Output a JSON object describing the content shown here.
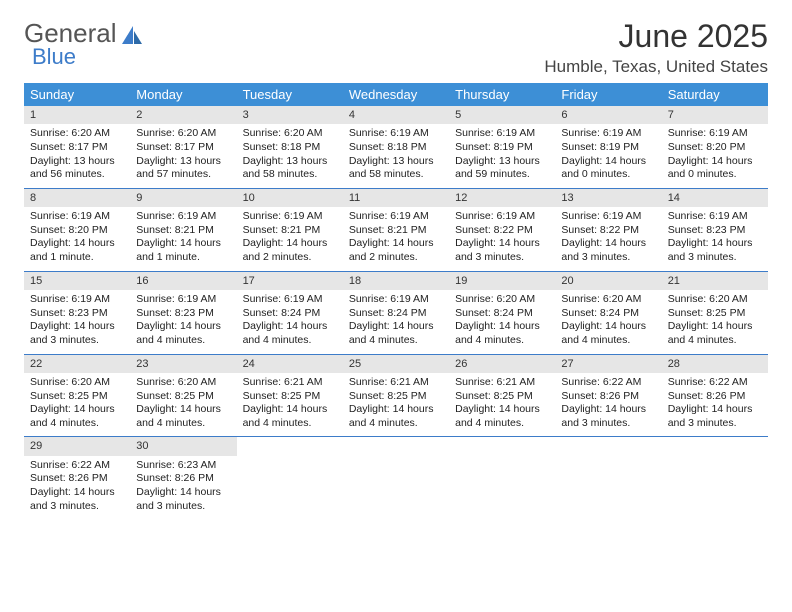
{
  "logo": {
    "text1": "General",
    "text2": "Blue"
  },
  "title": "June 2025",
  "location": "Humble, Texas, United States",
  "colors": {
    "header_bg": "#3d8fd6",
    "accent": "#3d7cc9",
    "daynum_bg": "#e6e6e6"
  },
  "weekdays": [
    "Sunday",
    "Monday",
    "Tuesday",
    "Wednesday",
    "Thursday",
    "Friday",
    "Saturday"
  ],
  "days": [
    {
      "n": "1",
      "sr": "6:20 AM",
      "ss": "8:17 PM",
      "dl": "13 hours and 56 minutes."
    },
    {
      "n": "2",
      "sr": "6:20 AM",
      "ss": "8:17 PM",
      "dl": "13 hours and 57 minutes."
    },
    {
      "n": "3",
      "sr": "6:20 AM",
      "ss": "8:18 PM",
      "dl": "13 hours and 58 minutes."
    },
    {
      "n": "4",
      "sr": "6:19 AM",
      "ss": "8:18 PM",
      "dl": "13 hours and 58 minutes."
    },
    {
      "n": "5",
      "sr": "6:19 AM",
      "ss": "8:19 PM",
      "dl": "13 hours and 59 minutes."
    },
    {
      "n": "6",
      "sr": "6:19 AM",
      "ss": "8:19 PM",
      "dl": "14 hours and 0 minutes."
    },
    {
      "n": "7",
      "sr": "6:19 AM",
      "ss": "8:20 PM",
      "dl": "14 hours and 0 minutes."
    },
    {
      "n": "8",
      "sr": "6:19 AM",
      "ss": "8:20 PM",
      "dl": "14 hours and 1 minute."
    },
    {
      "n": "9",
      "sr": "6:19 AM",
      "ss": "8:21 PM",
      "dl": "14 hours and 1 minute."
    },
    {
      "n": "10",
      "sr": "6:19 AM",
      "ss": "8:21 PM",
      "dl": "14 hours and 2 minutes."
    },
    {
      "n": "11",
      "sr": "6:19 AM",
      "ss": "8:21 PM",
      "dl": "14 hours and 2 minutes."
    },
    {
      "n": "12",
      "sr": "6:19 AM",
      "ss": "8:22 PM",
      "dl": "14 hours and 3 minutes."
    },
    {
      "n": "13",
      "sr": "6:19 AM",
      "ss": "8:22 PM",
      "dl": "14 hours and 3 minutes."
    },
    {
      "n": "14",
      "sr": "6:19 AM",
      "ss": "8:23 PM",
      "dl": "14 hours and 3 minutes."
    },
    {
      "n": "15",
      "sr": "6:19 AM",
      "ss": "8:23 PM",
      "dl": "14 hours and 3 minutes."
    },
    {
      "n": "16",
      "sr": "6:19 AM",
      "ss": "8:23 PM",
      "dl": "14 hours and 4 minutes."
    },
    {
      "n": "17",
      "sr": "6:19 AM",
      "ss": "8:24 PM",
      "dl": "14 hours and 4 minutes."
    },
    {
      "n": "18",
      "sr": "6:19 AM",
      "ss": "8:24 PM",
      "dl": "14 hours and 4 minutes."
    },
    {
      "n": "19",
      "sr": "6:20 AM",
      "ss": "8:24 PM",
      "dl": "14 hours and 4 minutes."
    },
    {
      "n": "20",
      "sr": "6:20 AM",
      "ss": "8:24 PM",
      "dl": "14 hours and 4 minutes."
    },
    {
      "n": "21",
      "sr": "6:20 AM",
      "ss": "8:25 PM",
      "dl": "14 hours and 4 minutes."
    },
    {
      "n": "22",
      "sr": "6:20 AM",
      "ss": "8:25 PM",
      "dl": "14 hours and 4 minutes."
    },
    {
      "n": "23",
      "sr": "6:20 AM",
      "ss": "8:25 PM",
      "dl": "14 hours and 4 minutes."
    },
    {
      "n": "24",
      "sr": "6:21 AM",
      "ss": "8:25 PM",
      "dl": "14 hours and 4 minutes."
    },
    {
      "n": "25",
      "sr": "6:21 AM",
      "ss": "8:25 PM",
      "dl": "14 hours and 4 minutes."
    },
    {
      "n": "26",
      "sr": "6:21 AM",
      "ss": "8:25 PM",
      "dl": "14 hours and 4 minutes."
    },
    {
      "n": "27",
      "sr": "6:22 AM",
      "ss": "8:26 PM",
      "dl": "14 hours and 3 minutes."
    },
    {
      "n": "28",
      "sr": "6:22 AM",
      "ss": "8:26 PM",
      "dl": "14 hours and 3 minutes."
    },
    {
      "n": "29",
      "sr": "6:22 AM",
      "ss": "8:26 PM",
      "dl": "14 hours and 3 minutes."
    },
    {
      "n": "30",
      "sr": "6:23 AM",
      "ss": "8:26 PM",
      "dl": "14 hours and 3 minutes."
    }
  ],
  "labels": {
    "sunrise": "Sunrise: ",
    "sunset": "Sunset: ",
    "daylight": "Daylight: "
  },
  "layout": {
    "start_weekday": 0,
    "rows": 5,
    "cols": 7
  }
}
